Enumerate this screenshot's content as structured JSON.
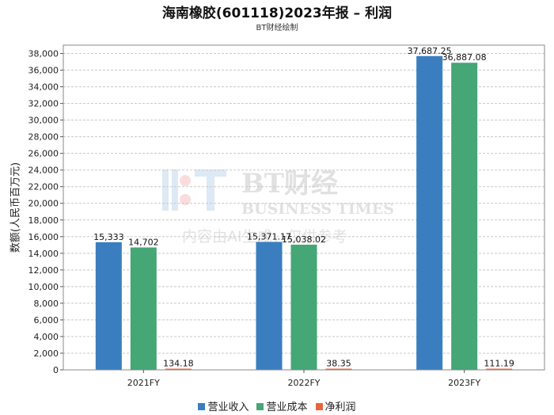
{
  "chart_data": {
    "type": "bar",
    "title": "海南橡胶(601118)2023年报 – 利润",
    "subtitle": "BT财经绘制",
    "ylabel": "数额(人民币百万元)",
    "xlabel": "",
    "categories": [
      "2021FY",
      "2022FY",
      "2023FY"
    ],
    "ylim": [
      0,
      38000
    ],
    "yticks": [
      0,
      2000,
      4000,
      6000,
      8000,
      10000,
      12000,
      14000,
      16000,
      18000,
      20000,
      22000,
      24000,
      26000,
      28000,
      30000,
      32000,
      34000,
      36000,
      38000
    ],
    "grid": true,
    "legend_position": "bottom",
    "series": [
      {
        "name": "营业收入",
        "color": "#3a7ebf",
        "values": [
          15333,
          15371.17,
          37687.25
        ],
        "labels": [
          "15,333",
          "15,371.17",
          "37,687.25"
        ]
      },
      {
        "name": "营业成本",
        "color": "#45a676",
        "values": [
          14702,
          15038.02,
          36887.08
        ],
        "labels": [
          "14,702",
          "15,038.02",
          "36,887.08"
        ]
      },
      {
        "name": "净利润",
        "color": "#e8643c",
        "values": [
          134.18,
          38.35,
          111.19
        ],
        "labels": [
          "134.18",
          "38.35",
          "111.19"
        ]
      }
    ]
  },
  "watermark": {
    "brand": "BT财经",
    "english": "BUSINESS TIMES",
    "note": "内容由AI生成，仅供参考"
  }
}
